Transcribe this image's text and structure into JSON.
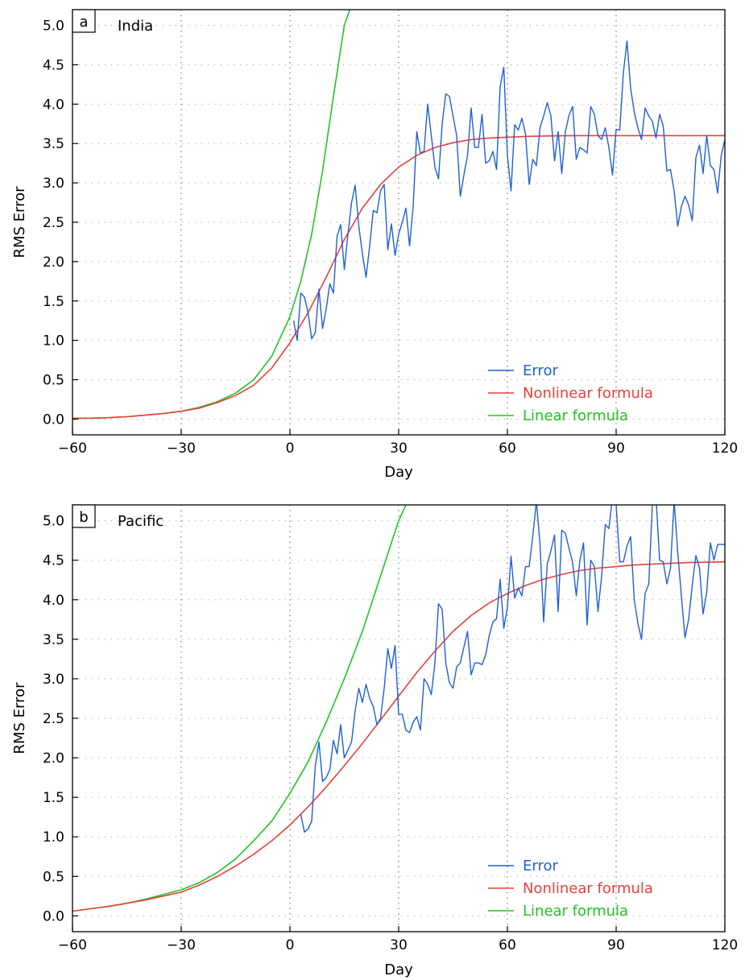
{
  "chart_data": [
    {
      "type": "line",
      "panel_label": "a",
      "region": "India",
      "xlabel": "Day",
      "ylabel": "RMS Error",
      "xlim": [
        -60,
        120
      ],
      "ylim": [
        -0.2,
        5.2
      ],
      "xticks": [
        -60,
        -30,
        0,
        30,
        60,
        90,
        120
      ],
      "xtick_labels": [
        "−60",
        "−30",
        "0",
        "30",
        "60",
        "90",
        "120"
      ],
      "yticks": [
        0.0,
        0.5,
        1.0,
        1.5,
        2.0,
        2.5,
        3.0,
        3.5,
        4.0,
        4.5,
        5.0
      ],
      "ytick_labels": [
        "0.0",
        "0.5",
        "1.0",
        "1.5",
        "2.0",
        "2.5",
        "3.0",
        "3.5",
        "4.0",
        "4.5",
        "5.0"
      ],
      "grid": true,
      "legend_position": "bottom-right",
      "series": [
        {
          "name": "Error",
          "color": "#1f5fd6",
          "x": [
            1,
            2,
            3,
            4,
            5,
            6,
            7,
            8,
            9,
            10,
            11,
            12,
            13,
            14,
            15,
            16,
            17,
            18,
            19,
            20,
            21,
            22,
            23,
            24,
            25,
            26,
            27,
            28,
            29,
            30,
            31,
            32,
            33,
            34,
            35,
            36,
            37,
            38,
            39,
            40,
            41,
            42,
            43,
            44,
            45,
            46,
            47,
            48,
            49,
            50,
            51,
            52,
            53,
            54,
            55,
            56,
            57,
            58,
            59,
            60,
            61,
            62,
            63,
            64,
            65,
            66,
            67,
            68,
            69,
            70,
            71,
            72,
            73,
            74,
            75,
            76,
            77,
            78,
            79,
            80,
            81,
            82,
            83,
            84,
            85,
            86,
            87,
            88,
            89,
            90,
            91,
            92,
            93,
            94,
            95,
            96,
            97,
            98,
            99,
            100,
            101,
            102,
            103,
            104,
            105,
            106,
            107,
            108,
            109,
            110,
            111,
            112,
            113,
            114,
            115,
            116,
            117,
            118,
            119,
            120
          ],
          "y": [
            1.25,
            1.0,
            1.6,
            1.55,
            1.35,
            1.02,
            1.1,
            1.65,
            1.15,
            1.4,
            1.72,
            1.6,
            2.32,
            2.47,
            1.9,
            2.35,
            2.75,
            2.97,
            2.45,
            2.1,
            1.8,
            2.2,
            2.65,
            2.62,
            2.9,
            2.98,
            2.15,
            2.48,
            2.08,
            2.35,
            2.5,
            2.68,
            2.2,
            2.7,
            3.65,
            3.38,
            3.4,
            4.0,
            3.6,
            3.2,
            3.05,
            3.75,
            4.13,
            4.1,
            3.85,
            3.6,
            2.83,
            3.1,
            3.35,
            3.95,
            3.45,
            3.45,
            3.87,
            3.25,
            3.28,
            3.4,
            3.17,
            4.22,
            4.47,
            3.35,
            2.9,
            3.74,
            3.67,
            3.82,
            3.62,
            2.98,
            3.3,
            3.22,
            3.7,
            3.85,
            4.02,
            3.85,
            3.28,
            3.65,
            3.12,
            3.65,
            3.86,
            3.97,
            3.3,
            3.45,
            3.42,
            3.38,
            3.97,
            3.87,
            3.6,
            3.55,
            3.7,
            3.45,
            3.1,
            3.68,
            3.67,
            4.4,
            4.8,
            4.2,
            3.9,
            3.7,
            3.55,
            3.95,
            3.85,
            3.78,
            3.57,
            3.87,
            3.72,
            3.15,
            3.17,
            2.9,
            2.45,
            2.7,
            2.83,
            2.72,
            2.52,
            3.32,
            3.48,
            3.12,
            3.6,
            3.22,
            3.17,
            2.87,
            3.35,
            3.55
          ]
        },
        {
          "name": "Nonlinear formula",
          "color": "#e8403a",
          "x": [
            -60,
            -55,
            -50,
            -45,
            -40,
            -35,
            -30,
            -25,
            -20,
            -15,
            -10,
            -5,
            0,
            5,
            10,
            15,
            20,
            25,
            30,
            35,
            40,
            45,
            50,
            55,
            60,
            65,
            70,
            75,
            80,
            85,
            90,
            95,
            100,
            105,
            110,
            115,
            120
          ],
          "y": [
            0.01,
            0.012,
            0.018,
            0.03,
            0.05,
            0.07,
            0.1,
            0.14,
            0.21,
            0.3,
            0.43,
            0.65,
            0.97,
            1.35,
            1.8,
            2.28,
            2.68,
            2.98,
            3.2,
            3.35,
            3.45,
            3.51,
            3.55,
            3.57,
            3.58,
            3.59,
            3.595,
            3.598,
            3.6,
            3.6,
            3.6,
            3.6,
            3.6,
            3.6,
            3.6,
            3.6,
            3.6
          ]
        },
        {
          "name": "Linear formula",
          "color": "#22c322",
          "x": [
            -60,
            -55,
            -50,
            -45,
            -40,
            -35,
            -30,
            -25,
            -20,
            -15,
            -10,
            -5,
            0,
            3,
            6,
            9,
            12,
            15,
            16.5
          ],
          "y": [
            0.01,
            0.012,
            0.018,
            0.03,
            0.05,
            0.07,
            0.1,
            0.15,
            0.22,
            0.33,
            0.5,
            0.8,
            1.3,
            1.75,
            2.35,
            3.15,
            4.1,
            5.0,
            5.2
          ]
        }
      ]
    },
    {
      "type": "line",
      "panel_label": "b",
      "region": "Pacific",
      "xlabel": "Day",
      "ylabel": "RMS Error",
      "xlim": [
        -60,
        120
      ],
      "ylim": [
        -0.2,
        5.2
      ],
      "xticks": [
        -60,
        -30,
        0,
        30,
        60,
        90,
        120
      ],
      "xtick_labels": [
        "−60",
        "−30",
        "0",
        "30",
        "60",
        "90",
        "120"
      ],
      "yticks": [
        0.0,
        0.5,
        1.0,
        1.5,
        2.0,
        2.5,
        3.0,
        3.5,
        4.0,
        4.5,
        5.0
      ],
      "ytick_labels": [
        "0.0",
        "0.5",
        "1.0",
        "1.5",
        "2.0",
        "2.5",
        "3.0",
        "3.5",
        "4.0",
        "4.5",
        "5.0"
      ],
      "grid": true,
      "legend_position": "bottom-right",
      "series": [
        {
          "name": "Error",
          "color": "#1f5fd6",
          "x": [
            3,
            4,
            5,
            6,
            7,
            8,
            9,
            10,
            11,
            12,
            13,
            14,
            15,
            16,
            17,
            18,
            19,
            20,
            21,
            22,
            23,
            24,
            25,
            26,
            27,
            28,
            29,
            30,
            31,
            32,
            33,
            34,
            35,
            36,
            37,
            38,
            39,
            40,
            41,
            42,
            43,
            44,
            45,
            46,
            47,
            48,
            49,
            50,
            51,
            52,
            53,
            54,
            55,
            56,
            57,
            58,
            59,
            60,
            61,
            62,
            63,
            64,
            65,
            66,
            67,
            68,
            69,
            70,
            71,
            72,
            73,
            74,
            75,
            76,
            77,
            78,
            79,
            80,
            81,
            82,
            83,
            84,
            85,
            86,
            87,
            88,
            89,
            90,
            91,
            92,
            93,
            94,
            95,
            96,
            97,
            98,
            99,
            100,
            101,
            102,
            103,
            104,
            105,
            106,
            107,
            108,
            109,
            110,
            111,
            112,
            113,
            114,
            115,
            116,
            117,
            118,
            119,
            120
          ],
          "y": [
            1.28,
            1.06,
            1.1,
            1.2,
            1.9,
            2.2,
            1.7,
            1.75,
            1.85,
            2.22,
            2.05,
            2.42,
            2.0,
            2.1,
            2.2,
            2.6,
            2.88,
            2.7,
            2.93,
            2.75,
            2.65,
            2.42,
            2.5,
            2.88,
            3.38,
            3.13,
            3.42,
            2.55,
            2.55,
            2.35,
            2.32,
            2.45,
            2.52,
            2.35,
            3.0,
            2.93,
            2.8,
            3.2,
            3.95,
            3.88,
            3.2,
            2.95,
            2.88,
            3.15,
            3.2,
            3.4,
            3.6,
            3.05,
            3.2,
            3.2,
            3.18,
            3.3,
            3.55,
            3.72,
            3.76,
            4.26,
            3.64,
            3.9,
            4.55,
            4.02,
            4.15,
            4.05,
            4.42,
            4.42,
            4.8,
            5.25,
            4.7,
            3.72,
            4.45,
            4.62,
            4.82,
            3.85,
            4.88,
            4.84,
            4.65,
            4.47,
            4.05,
            4.5,
            4.72,
            3.68,
            4.5,
            4.42,
            3.85,
            4.3,
            4.95,
            4.9,
            5.3,
            5.2,
            4.48,
            4.48,
            4.68,
            4.8,
            4.0,
            3.7,
            3.5,
            4.08,
            4.2,
            5.2,
            5.3,
            4.5,
            4.48,
            4.2,
            4.4,
            5.25,
            4.6,
            4.05,
            3.52,
            3.75,
            4.18,
            4.56,
            4.4,
            3.82,
            4.1,
            4.72,
            4.5,
            4.7,
            4.7,
            4.7
          ]
        },
        {
          "name": "Nonlinear formula",
          "color": "#e8403a",
          "x": [
            -60,
            -55,
            -50,
            -45,
            -40,
            -35,
            -30,
            -25,
            -20,
            -15,
            -10,
            -5,
            0,
            5,
            10,
            15,
            20,
            25,
            30,
            35,
            40,
            45,
            50,
            55,
            60,
            65,
            70,
            75,
            80,
            85,
            90,
            95,
            100,
            105,
            110,
            115,
            120
          ],
          "y": [
            0.06,
            0.09,
            0.12,
            0.16,
            0.2,
            0.25,
            0.3,
            0.39,
            0.5,
            0.63,
            0.78,
            0.95,
            1.15,
            1.38,
            1.63,
            1.9,
            2.18,
            2.48,
            2.78,
            3.08,
            3.35,
            3.6,
            3.8,
            3.96,
            4.08,
            4.18,
            4.26,
            4.32,
            4.37,
            4.4,
            4.42,
            4.44,
            4.45,
            4.46,
            4.47,
            4.475,
            4.48
          ]
        },
        {
          "name": "Linear formula",
          "color": "#22c322",
          "x": [
            -60,
            -55,
            -50,
            -45,
            -40,
            -35,
            -30,
            -25,
            -20,
            -15,
            -10,
            -5,
            0,
            5,
            10,
            15,
            20,
            25,
            30,
            32
          ],
          "y": [
            0.06,
            0.09,
            0.12,
            0.16,
            0.21,
            0.27,
            0.33,
            0.42,
            0.55,
            0.72,
            0.95,
            1.2,
            1.55,
            1.95,
            2.45,
            3.0,
            3.6,
            4.3,
            5.0,
            5.2
          ]
        }
      ]
    }
  ]
}
